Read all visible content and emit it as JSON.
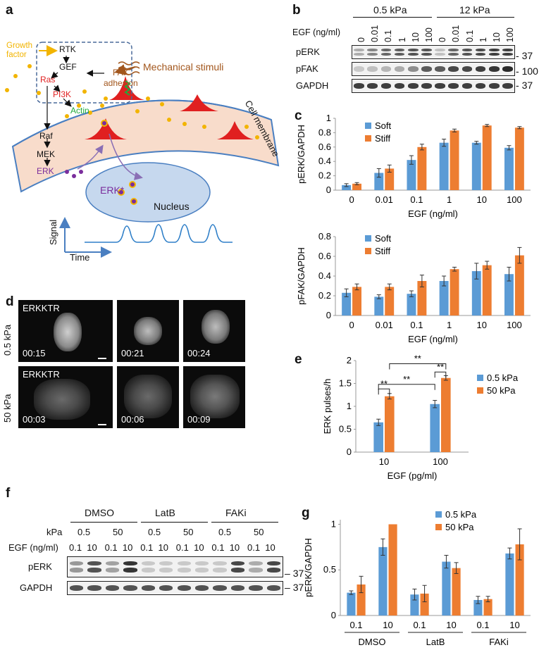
{
  "panels": {
    "a": "a",
    "b": "b",
    "c": "c",
    "d": "d",
    "e": "e",
    "f": "f",
    "g": "g"
  },
  "panel_a": {
    "growth_factor": "Growth\nfactor",
    "rtk": "RTK",
    "gef": "GEF",
    "ras": "Ras",
    "pi3k": "PI3K",
    "actin": "Actin",
    "fak": "FAK\nadhesion",
    "mechanical": "Mechanical stimuli",
    "raf": "Raf",
    "mek": "MEK",
    "erk": "ERK",
    "erk_star": "ERK*",
    "nucleus": "Nucleus",
    "membrane": "Cell membrane",
    "signal": "Signal",
    "time": "Time",
    "colors": {
      "growth": "#f2b400",
      "ras": "#e02020",
      "actin": "#1faa3a",
      "mech": "#a2561c",
      "erk": "#7a2d9c",
      "membrane": "#f8dccb",
      "nucleus": "#c6d8ee"
    }
  },
  "panel_b": {
    "stiffness": [
      "0.5 kPa",
      "12 kPa"
    ],
    "egf_label": "EGF (ng/ml)",
    "doses": [
      "0",
      "0.01",
      "0.1",
      "1",
      "10",
      "100",
      "0",
      "0.01",
      "0.1",
      "1",
      "10",
      "100"
    ],
    "rows": [
      {
        "name": "pERK",
        "mw": "37"
      },
      {
        "name": "pFAK",
        "mw": "100"
      },
      {
        "name": "GAPDH",
        "mw": "37"
      }
    ]
  },
  "chart_data": [
    {
      "id": "c-top",
      "type": "bar",
      "categories": [
        "0",
        "0.01",
        "0.1",
        "1",
        "10",
        "100"
      ],
      "series": [
        {
          "name": "Soft",
          "values": [
            0.07,
            0.24,
            0.42,
            0.66,
            0.66,
            0.59
          ],
          "errors": [
            0.02,
            0.06,
            0.06,
            0.05,
            0.02,
            0.03
          ],
          "color": "#5b9bd5"
        },
        {
          "name": "Stiff",
          "values": [
            0.09,
            0.3,
            0.6,
            0.83,
            0.9,
            0.87
          ],
          "errors": [
            0.015,
            0.05,
            0.04,
            0.02,
            0.015,
            0.015
          ],
          "color": "#ed7d31"
        }
      ],
      "ylabel": "pERK/GAPDH",
      "xlabel": "EGF (ng/ml)",
      "ylim": [
        0,
        1
      ],
      "yticks": [
        "0",
        "0.2",
        "0.4",
        "0.6",
        "0.8",
        "1"
      ]
    },
    {
      "id": "c-bottom",
      "type": "bar",
      "categories": [
        "0",
        "0.01",
        "0.1",
        "1",
        "10",
        "100"
      ],
      "series": [
        {
          "name": "Soft",
          "values": [
            0.23,
            0.19,
            0.22,
            0.35,
            0.45,
            0.42
          ],
          "errors": [
            0.04,
            0.02,
            0.03,
            0.05,
            0.08,
            0.07
          ],
          "color": "#5b9bd5"
        },
        {
          "name": "Stiff",
          "values": [
            0.29,
            0.29,
            0.35,
            0.47,
            0.51,
            0.61
          ],
          "errors": [
            0.03,
            0.03,
            0.06,
            0.02,
            0.04,
            0.08
          ],
          "color": "#ed7d31"
        }
      ],
      "ylabel": "pFAK/GAPDH",
      "xlabel": "EGF (ng/ml)",
      "ylim": [
        0,
        0.8
      ],
      "yticks": [
        "0",
        "0.2",
        "0.4",
        "0.6",
        "0.8"
      ]
    },
    {
      "id": "e",
      "type": "bar",
      "categories": [
        "10",
        "100"
      ],
      "series": [
        {
          "name": "0.5 kPa",
          "values": [
            0.65,
            1.05
          ],
          "errors": [
            0.07,
            0.08
          ],
          "color": "#5b9bd5"
        },
        {
          "name": "50 kPa",
          "values": [
            1.22,
            1.62
          ],
          "errors": [
            0.06,
            0.05
          ],
          "color": "#ed7d31"
        }
      ],
      "ylabel": "ERK pulses/h",
      "xlabel": "EGF (pg/ml)",
      "ylim": [
        0,
        2
      ],
      "yticks": [
        "0",
        "0.5",
        "1",
        "1.5",
        "2"
      ],
      "annotations": [
        "**",
        "**",
        "**",
        "**"
      ]
    },
    {
      "id": "g",
      "type": "bar",
      "categories": [
        "0.1",
        "10",
        "0.1",
        "10",
        "0.1",
        "10"
      ],
      "groups": [
        "DMSO",
        "LatB",
        "FAKi"
      ],
      "series": [
        {
          "name": "0.5 kPa",
          "values": [
            0.25,
            0.75,
            0.23,
            0.59,
            0.17,
            0.68
          ],
          "errors": [
            0.02,
            0.09,
            0.06,
            0.07,
            0.04,
            0.06
          ],
          "color": "#5b9bd5"
        },
        {
          "name": "50 kPa",
          "values": [
            0.34,
            1.0,
            0.24,
            0.52,
            0.18,
            0.78
          ],
          "errors": [
            0.09,
            0.0,
            0.09,
            0.06,
            0.03,
            0.17
          ],
          "color": "#ed7d31"
        }
      ],
      "ylabel": "pERK/GAPDH",
      "ylim": [
        0,
        1.05
      ],
      "yticks": [
        "0",
        "0.5",
        "1"
      ]
    }
  ],
  "panel_d": {
    "rows": [
      {
        "label": "0.5 kPa",
        "tag": "ERKKTR",
        "times": [
          "00:15",
          "00:21",
          "00:24"
        ]
      },
      {
        "label": "50 kPa",
        "tag": "ERKKTR",
        "times": [
          "00:03",
          "00:06",
          "00:09"
        ]
      }
    ]
  },
  "panel_f": {
    "groups": [
      "DMSO",
      "LatB",
      "FAKi"
    ],
    "kpa_label": "kPa",
    "egf_label": "EGF (ng/ml)",
    "kpa": [
      "0.5",
      "50",
      "0.5",
      "50",
      "0.5",
      "50"
    ],
    "egf": [
      "0.1",
      "10",
      "0.1",
      "10",
      "0.1",
      "10",
      "0.1",
      "10",
      "0.1",
      "10",
      "0.1",
      "10"
    ],
    "rows": [
      {
        "name": "pERK",
        "mw": "37"
      },
      {
        "name": "GAPDH",
        "mw": "37"
      }
    ]
  }
}
